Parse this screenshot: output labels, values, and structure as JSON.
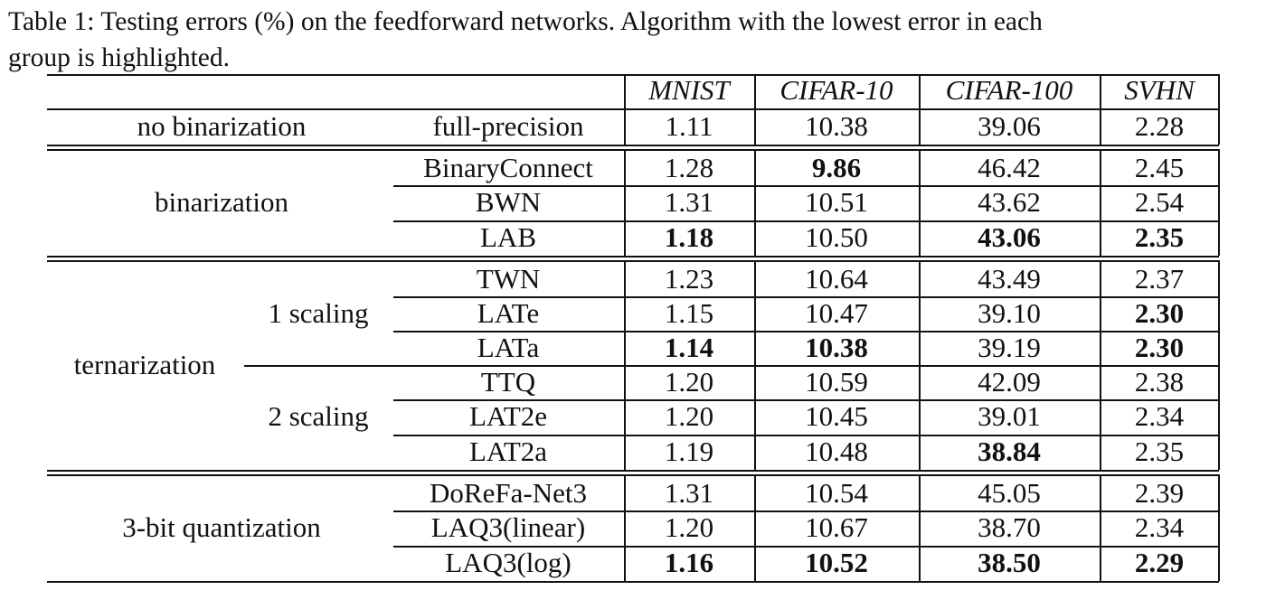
{
  "caption": {
    "line1": "Table 1: Testing errors (%) on the feedforward networks.  Algorithm with the lowest error in each",
    "line2": "group is highlighted."
  },
  "table": {
    "columns": [
      "MNIST",
      "CIFAR-10",
      "CIFAR-100",
      "SVHN"
    ],
    "groups": [
      {
        "label": "no binarization",
        "rows": [
          {
            "method": "full-precision",
            "values": [
              "1.11",
              "10.38",
              "39.06",
              "2.28"
            ],
            "bold": [
              false,
              false,
              false,
              false
            ]
          }
        ]
      },
      {
        "label": "binarization",
        "rows": [
          {
            "method": "BinaryConnect",
            "values": [
              "1.28",
              "9.86",
              "46.42",
              "2.45"
            ],
            "bold": [
              false,
              true,
              false,
              false
            ]
          },
          {
            "method": "BWN",
            "values": [
              "1.31",
              "10.51",
              "43.62",
              "2.54"
            ],
            "bold": [
              false,
              false,
              false,
              false
            ]
          },
          {
            "method": "LAB",
            "values": [
              "1.18",
              "10.50",
              "43.06",
              "2.35"
            ],
            "bold": [
              true,
              false,
              true,
              true
            ]
          }
        ]
      },
      {
        "label": "ternarization",
        "subgroups": [
          {
            "label": "1 scaling",
            "rows": [
              {
                "method": "TWN",
                "values": [
                  "1.23",
                  "10.64",
                  "43.49",
                  "2.37"
                ],
                "bold": [
                  false,
                  false,
                  false,
                  false
                ]
              },
              {
                "method": "LATe",
                "values": [
                  "1.15",
                  "10.47",
                  "39.10",
                  "2.30"
                ],
                "bold": [
                  false,
                  false,
                  false,
                  true
                ]
              },
              {
                "method": "LATa",
                "values": [
                  "1.14",
                  "10.38",
                  "39.19",
                  "2.30"
                ],
                "bold": [
                  true,
                  true,
                  false,
                  true
                ]
              }
            ]
          },
          {
            "label": "2 scaling",
            "rows": [
              {
                "method": "TTQ",
                "values": [
                  "1.20",
                  "10.59",
                  "42.09",
                  "2.38"
                ],
                "bold": [
                  false,
                  false,
                  false,
                  false
                ]
              },
              {
                "method": "LAT2e",
                "values": [
                  "1.20",
                  "10.45",
                  "39.01",
                  "2.34"
                ],
                "bold": [
                  false,
                  false,
                  false,
                  false
                ]
              },
              {
                "method": "LAT2a",
                "values": [
                  "1.19",
                  "10.48",
                  "38.84",
                  "2.35"
                ],
                "bold": [
                  false,
                  false,
                  true,
                  false
                ]
              }
            ]
          }
        ]
      },
      {
        "label": "3-bit quantization",
        "rows": [
          {
            "method": "DoReFa-Net3",
            "values": [
              "1.31",
              "10.54",
              "45.05",
              "2.39"
            ],
            "bold": [
              false,
              false,
              false,
              false
            ]
          },
          {
            "method": "LAQ3(linear)",
            "values": [
              "1.20",
              "10.67",
              "38.70",
              "2.34"
            ],
            "bold": [
              false,
              false,
              false,
              false
            ]
          },
          {
            "method": "LAQ3(log)",
            "values": [
              "1.16",
              "10.52",
              "38.50",
              "2.29"
            ],
            "bold": [
              true,
              true,
              true,
              true
            ]
          }
        ]
      }
    ]
  }
}
